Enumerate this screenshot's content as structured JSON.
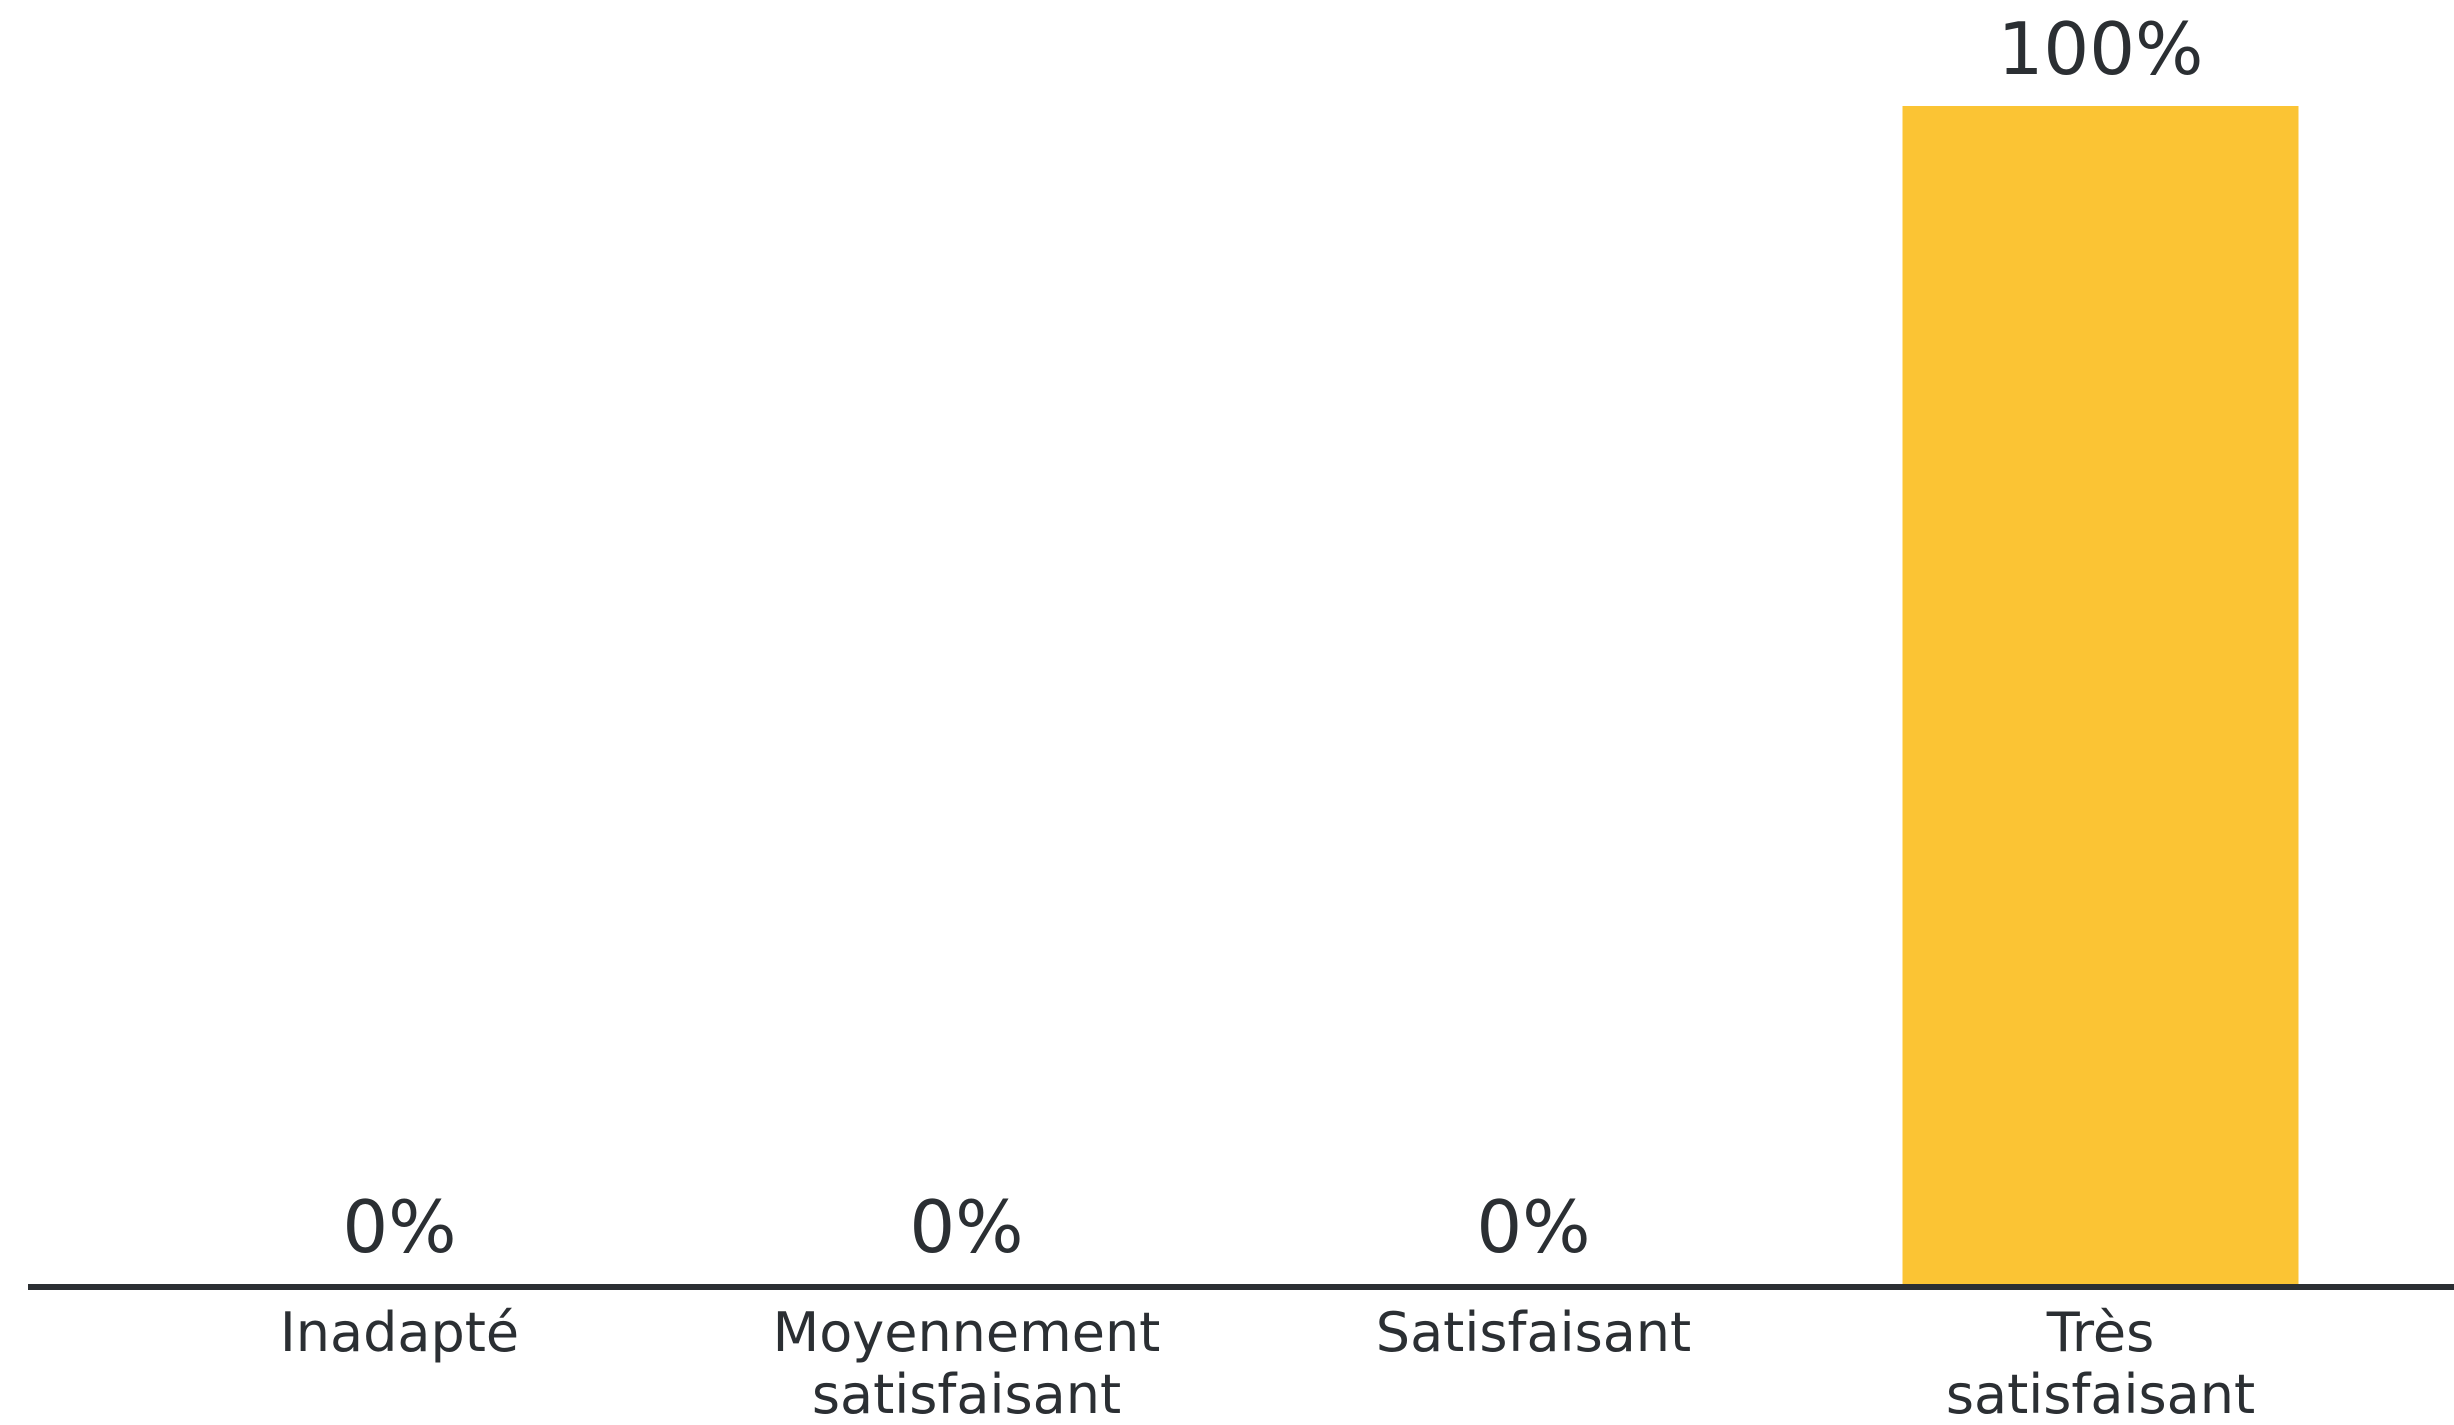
{
  "chart_data": {
    "type": "bar",
    "categories": [
      "Inadapté",
      "Moyennement satisfaisant",
      "Satisfaisant",
      "Très satisfaisant"
    ],
    "values": [
      0,
      0,
      0,
      100
    ],
    "value_labels": [
      "0%",
      "0%",
      "0%",
      "100%"
    ],
    "color": "#fbc434",
    "ylim": [
      0,
      100
    ]
  }
}
